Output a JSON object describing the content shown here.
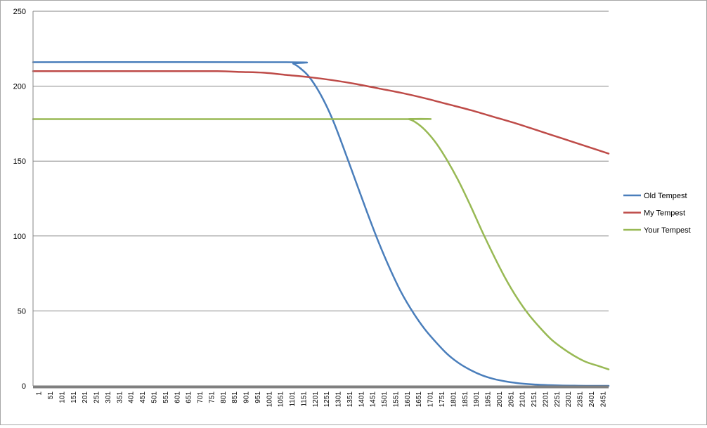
{
  "chart_data": {
    "type": "line",
    "title": "",
    "xlabel": "",
    "ylabel": "",
    "ylim": [
      0,
      250
    ],
    "yticks": [
      0,
      50,
      100,
      150,
      200,
      250
    ],
    "xlim": [
      1,
      2500
    ],
    "xtick_labels": [
      "1",
      "51",
      "101",
      "151",
      "201",
      "251",
      "301",
      "351",
      "401",
      "451",
      "501",
      "551",
      "601",
      "651",
      "701",
      "751",
      "801",
      "851",
      "901",
      "951",
      "1001",
      "1051",
      "1101",
      "1151",
      "1201",
      "1251",
      "1301",
      "1351",
      "1401",
      "1451",
      "1501",
      "1551",
      "1601",
      "1651",
      "1701",
      "1751",
      "1801",
      "1851",
      "1901",
      "1951",
      "2001",
      "2051",
      "2101",
      "2151",
      "2201",
      "2251",
      "2301",
      "2351",
      "2401",
      "2451"
    ],
    "grid": "horizontal",
    "legend": "right",
    "series": [
      {
        "name": "Old Tempest",
        "color": "#4a7ebb",
        "x": [
          1,
          1101,
          1131,
          1161,
          1201,
          1251,
          1301,
          1351,
          1401,
          1451,
          1501,
          1551,
          1601,
          1651,
          1701,
          1751,
          1801,
          1851,
          1901,
          1951,
          2001,
          2051,
          2101,
          2151,
          2201,
          2251,
          2301,
          2351,
          2401,
          2451,
          2500
        ],
        "y": [
          216,
          216,
          215,
          212,
          206,
          194,
          178,
          158,
          137,
          116,
          96,
          78,
          62,
          49,
          38,
          29,
          21,
          15,
          10.5,
          7,
          4.6,
          3,
          1.9,
          1.2,
          0.7,
          0.4,
          0.2,
          0.1,
          0,
          0,
          0
        ]
      },
      {
        "name": "My Tempest",
        "color": "#be4b48",
        "x": [
          1,
          201,
          401,
          601,
          801,
          901,
          1001,
          1101,
          1201,
          1301,
          1401,
          1501,
          1601,
          1701,
          1801,
          1901,
          2001,
          2101,
          2201,
          2301,
          2401,
          2500
        ],
        "y": [
          210,
          210,
          210,
          210,
          210,
          209.5,
          209,
          207.5,
          206,
          204,
          201.5,
          198.5,
          195.5,
          192,
          188,
          184,
          179.5,
          175,
          170,
          165,
          160,
          155
        ]
      },
      {
        "name": "Your Tempest",
        "color": "#98b954",
        "x": [
          1,
          1601,
          1631,
          1661,
          1701,
          1751,
          1801,
          1851,
          1901,
          1951,
          2001,
          2051,
          2101,
          2151,
          2201,
          2251,
          2301,
          2351,
          2401,
          2451,
          2500
        ],
        "y": [
          178,
          178,
          178,
          176,
          171,
          162,
          150,
          136,
          120,
          103,
          87,
          72,
          59,
          48,
          39,
          31,
          25,
          20,
          16,
          13.5,
          11
        ]
      }
    ]
  }
}
